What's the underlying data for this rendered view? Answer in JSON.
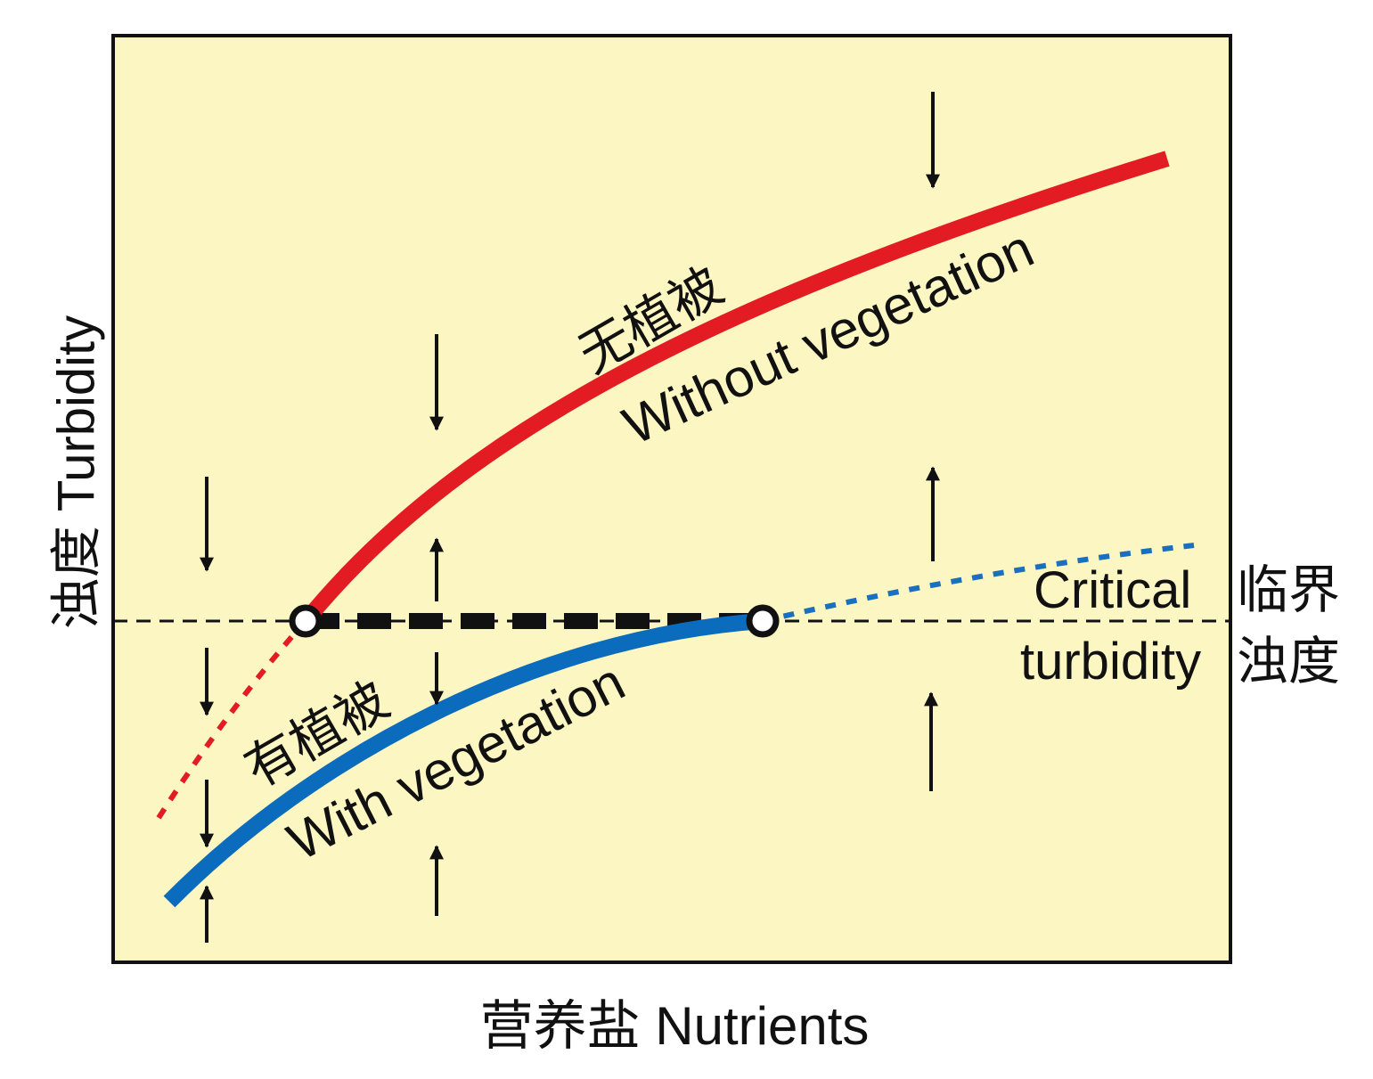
{
  "axes": {
    "y_label": "浊度  Turbidity",
    "x_label": "营养盐 Nutrients"
  },
  "curves": {
    "without": {
      "zh": "无植被",
      "en": "Without vegetation"
    },
    "with": {
      "zh": "有植被",
      "en": "With vegetation"
    }
  },
  "critical": {
    "en_line1": "Critical",
    "zh_line1": "临界",
    "en_line2": "turbidity",
    "zh_line2": "浊度"
  }
}
